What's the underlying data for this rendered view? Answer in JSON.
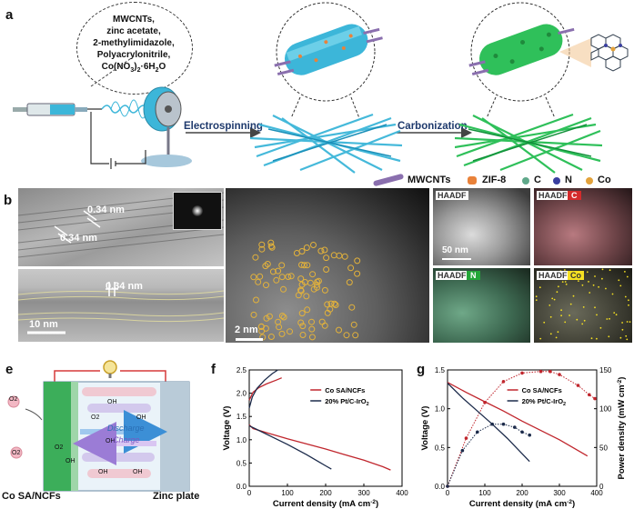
{
  "panel_a": {
    "label": "a",
    "precursors": [
      "MWCNTs,",
      "zinc acetate,",
      "2-methylimidazole,",
      "Polyacrylonitrile,",
      "Co(NO",
      "3",
      ")",
      "2",
      "·6H",
      "2",
      "O"
    ],
    "step1": "Electrospinning",
    "step2": "Carbonization",
    "legend": [
      {
        "name": "MWCNTs",
        "color": "#8a6fae"
      },
      {
        "name": "ZIF-8",
        "color": "#e9823a"
      },
      {
        "name": "C",
        "color": "#5fa88a"
      },
      {
        "name": "N",
        "color": "#3a3fa0"
      },
      {
        "name": "Co",
        "color": "#e3a23b"
      }
    ]
  },
  "panel_b": {
    "label": "b",
    "spacing1": "0.34 nm",
    "spacing2": "0.34 nm",
    "spacing3": "0.34 nm",
    "scale": "10 nm"
  },
  "panel_c": {
    "label": "c",
    "scale": "2 nm"
  },
  "panel_d": {
    "label": "d",
    "tiles": [
      {
        "tag": "HAADF",
        "el": ""
      },
      {
        "tag": "HAADF",
        "el": "C"
      },
      {
        "tag": "HAADF",
        "el": "N"
      },
      {
        "tag": "HAADF",
        "el": "Co"
      }
    ],
    "scale": "50 nm"
  },
  "panel_e": {
    "label": "e",
    "left_label": "Co SA/NCFs",
    "right_label": "Zinc plate",
    "discharge": "Discharge",
    "charge": "Charge",
    "species": [
      "O2",
      "OH",
      "O2",
      "OH",
      "O2",
      "OH",
      "OH",
      "OH",
      "OH",
      "O2"
    ]
  },
  "chart_data": [
    {
      "panel": "f",
      "type": "line",
      "xlabel": "Current density (mA cm",
      "xlabel_sup": "-2",
      "xlabel_tail": ")",
      "ylabel": "Voltage (V)",
      "xlim": [
        0,
        400
      ],
      "ylim": [
        0.0,
        2.5
      ],
      "xticks": [
        "0",
        "100",
        "200",
        "300",
        "400"
      ],
      "yticks": [
        "0.0",
        "0.5",
        "1.0",
        "1.5",
        "2.0",
        "2.5"
      ],
      "series": [
        {
          "name": "Co SA/NCFs",
          "color": "#c0262d",
          "discharge": [
            [
              0,
              1.32
            ],
            [
              10,
              1.24
            ],
            [
              50,
              1.14
            ],
            [
              100,
              1.02
            ],
            [
              150,
              0.91
            ],
            [
              200,
              0.8
            ],
            [
              250,
              0.68
            ],
            [
              300,
              0.56
            ],
            [
              350,
              0.42
            ],
            [
              370,
              0.35
            ]
          ],
          "charge": [
            [
              0,
              1.85
            ],
            [
              10,
              2.02
            ],
            [
              25,
              2.12
            ],
            [
              45,
              2.2
            ],
            [
              70,
              2.28
            ],
            [
              85,
              2.33
            ]
          ]
        },
        {
          "name": "20% Pt/C-IrO",
          "name_sub": "2",
          "color": "#1b2a4a",
          "discharge": [
            [
              0,
              1.3
            ],
            [
              20,
              1.22
            ],
            [
              50,
              1.1
            ],
            [
              100,
              0.9
            ],
            [
              150,
              0.68
            ],
            [
              200,
              0.44
            ],
            [
              215,
              0.37
            ]
          ],
          "charge": [
            [
              0,
              1.68
            ],
            [
              8,
              1.92
            ],
            [
              20,
              2.1
            ],
            [
              40,
              2.28
            ],
            [
              60,
              2.42
            ],
            [
              75,
              2.5
            ]
          ]
        }
      ]
    },
    {
      "panel": "g",
      "type": "line",
      "xlabel": "Current density (mA cm",
      "xlabel_sup": "-2",
      "xlabel_tail": ")",
      "ylabel": "Voltage (V)",
      "y2label": "Power density (mW cm",
      "y2label_sup": "-2",
      "y2label_tail": ")",
      "xlim": [
        0,
        400
      ],
      "ylim": [
        0.0,
        1.5
      ],
      "y2lim": [
        0,
        150
      ],
      "xticks": [
        "0",
        "100",
        "200",
        "300",
        "400"
      ],
      "yticks": [
        "0.0",
        "0.5",
        "1.0",
        "1.5"
      ],
      "y2ticks": [
        "0",
        "50",
        "100",
        "150"
      ],
      "series": [
        {
          "name": "Co SA/NCFs",
          "color": "#c0262d",
          "voltage": [
            [
              0,
              1.34
            ],
            [
              50,
              1.21
            ],
            [
              100,
              1.09
            ],
            [
              150,
              0.97
            ],
            [
              200,
              0.84
            ],
            [
              250,
              0.72
            ],
            [
              300,
              0.6
            ],
            [
              350,
              0.46
            ],
            [
              375,
              0.39
            ]
          ],
          "power": [
            [
              0,
              0
            ],
            [
              50,
              62
            ],
            [
              100,
              108
            ],
            [
              150,
              135
            ],
            [
              200,
              146
            ],
            [
              250,
              148
            ],
            [
              275,
              148
            ],
            [
              300,
              144
            ],
            [
              350,
              130
            ],
            [
              380,
              118
            ],
            [
              395,
              113
            ]
          ]
        },
        {
          "name": "20% Pt/C-IrO",
          "name_sub": "2",
          "color": "#1b2a4a",
          "voltage": [
            [
              0,
              1.33
            ],
            [
              40,
              1.14
            ],
            [
              80,
              0.97
            ],
            [
              120,
              0.8
            ],
            [
              160,
              0.62
            ],
            [
              200,
              0.42
            ],
            [
              220,
              0.32
            ]
          ],
          "power": [
            [
              0,
              0
            ],
            [
              40,
              46
            ],
            [
              80,
              70
            ],
            [
              120,
              80
            ],
            [
              150,
              80
            ],
            [
              180,
              76
            ],
            [
              200,
              70
            ],
            [
              220,
              66
            ]
          ]
        }
      ]
    }
  ]
}
